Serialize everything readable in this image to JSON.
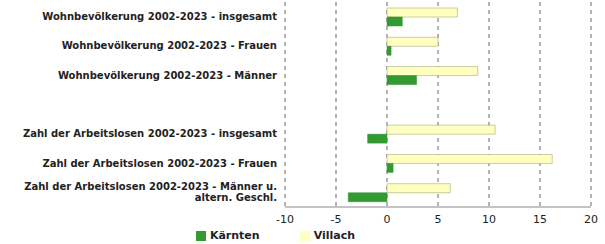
{
  "chart_data": {
    "type": "bar",
    "orientation": "horizontal",
    "categories": [
      "Wohnbevölkerung 2002-2023 - insgesamt",
      "Wohnbevölkerung 2002-2023 - Frauen",
      "Wohnbevölkerung 2002-2023 - Männer",
      null,
      "Zahl der Arbeitslosen 2002-2023 - insgesamt",
      "Zahl der Arbeitslosen 2002-2023 - Frauen",
      "Zahl der Arbeitslosen 2002-2023 - Männer u. altern. Geschl."
    ],
    "series": [
      {
        "name": "Villach",
        "color": "#ffffc0",
        "values": [
          6.9,
          5.0,
          8.9,
          null,
          10.6,
          16.2,
          6.2
        ]
      },
      {
        "name": "Kärnten",
        "color": "#339933",
        "values": [
          1.5,
          0.4,
          2.9,
          null,
          -1.9,
          0.6,
          -3.8
        ]
      }
    ],
    "xlim": [
      -10,
      20
    ],
    "xticks": [
      -10,
      -5,
      0,
      5,
      10,
      15,
      20
    ],
    "grid": true,
    "legend": "bottom"
  }
}
